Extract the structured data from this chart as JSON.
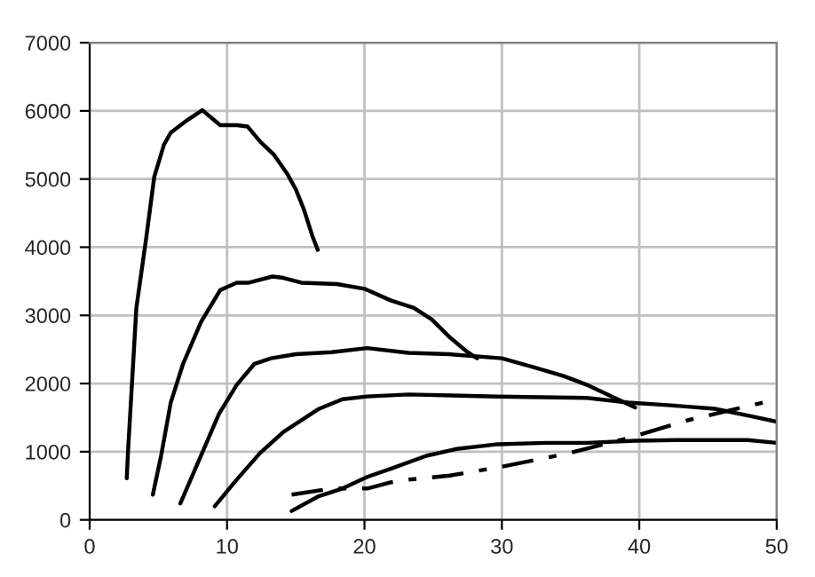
{
  "chart_data": {
    "type": "line",
    "xlim": [
      0,
      50
    ],
    "ylim": [
      0,
      7000
    ],
    "xticks": [
      0,
      10,
      20,
      30,
      40,
      50
    ],
    "yticks": [
      0,
      1000,
      2000,
      3000,
      4000,
      5000,
      6000,
      7000
    ],
    "grid": true,
    "marker": "none",
    "series": [
      {
        "color": "#000000",
        "x": [
          2.7,
          2.8,
          3.4,
          4.1,
          4.7,
          5.4,
          5.9,
          7.0,
          8.2,
          9.5,
          10.7,
          11.5,
          12.4,
          13.4,
          14.4,
          15.0,
          15.6,
          16.2,
          16.6
        ],
        "values": [
          610,
          1030,
          3110,
          4110,
          5030,
          5500,
          5680,
          5850,
          6010,
          5790,
          5790,
          5770,
          5550,
          5360,
          5070,
          4850,
          4550,
          4170,
          3960
        ]
      },
      {
        "color": "#000000",
        "x": [
          4.6,
          5.2,
          5.9,
          6.8,
          8.1,
          9.5,
          10.7,
          11.6,
          13.3,
          14.1,
          15.4,
          18.0,
          20.0,
          21.9,
          23.6,
          24.9,
          26.2,
          27.5,
          28.2
        ],
        "values": [
          370,
          940,
          1720,
          2290,
          2900,
          3370,
          3480,
          3480,
          3570,
          3550,
          3480,
          3460,
          3390,
          3220,
          3110,
          2940,
          2680,
          2460,
          2370
        ]
      },
      {
        "color": "#000000",
        "x": [
          6.6,
          8.1,
          9.4,
          10.7,
          12.0,
          13.2,
          15.0,
          17.6,
          20.2,
          23.2,
          26.2,
          30.0,
          32.3,
          34.5,
          36.2,
          38.0,
          39.7
        ],
        "values": [
          240,
          940,
          1550,
          1980,
          2290,
          2370,
          2430,
          2460,
          2520,
          2450,
          2430,
          2370,
          2240,
          2110,
          1980,
          1810,
          1650
        ]
      },
      {
        "color": "#000000",
        "x": [
          9.1,
          10.7,
          12.4,
          14.1,
          16.7,
          18.4,
          20.2,
          23.2,
          29.7,
          36.2,
          39.2,
          42.3,
          45.5,
          47.9,
          50.0
        ],
        "values": [
          200,
          590,
          980,
          1290,
          1630,
          1770,
          1810,
          1840,
          1810,
          1790,
          1720,
          1680,
          1630,
          1530,
          1440
        ]
      },
      {
        "color": "#000000",
        "x": [
          14.7,
          16.7,
          18.4,
          20.2,
          21.9,
          24.5,
          26.7,
          29.7,
          33.2,
          36.2,
          39.7,
          42.7,
          47.9,
          50.0
        ],
        "values": [
          130,
          350,
          460,
          630,
          750,
          940,
          1040,
          1110,
          1130,
          1130,
          1160,
          1170,
          1170,
          1130
        ]
      },
      {
        "color": "#000000",
        "line_style": "dashed",
        "x": [
          14.7,
          17.6,
          20.2,
          21.9,
          23.2,
          26.2,
          30.0,
          34.9,
          39.2,
          43.5,
          49.4
        ],
        "values": [
          370,
          460,
          460,
          550,
          590,
          650,
          780,
          980,
          1200,
          1460,
          1740
        ]
      }
    ]
  }
}
